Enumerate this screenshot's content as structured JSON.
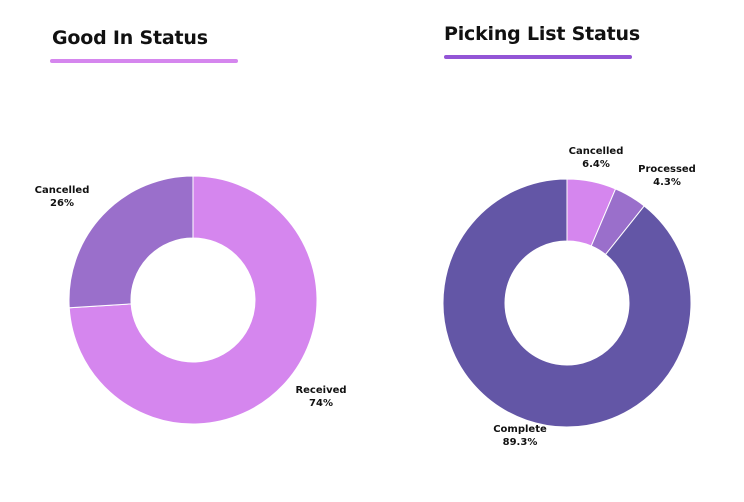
{
  "chart_data": [
    {
      "type": "pie",
      "title": "Good In Status",
      "underline_color": "#D586EE",
      "slices": [
        {
          "name": "Received",
          "value": 74,
          "value_label": "74%",
          "color": "#D586EE"
        },
        {
          "name": "Cancelled",
          "value": 26,
          "value_label": "26%",
          "color": "#9A6FCB"
        }
      ]
    },
    {
      "type": "pie",
      "title": "Picking List Status",
      "underline_color": "#9355D6",
      "slices": [
        {
          "name": "Cancelled",
          "value": 6.4,
          "value_label": "6.4%",
          "color": "#D586EE"
        },
        {
          "name": "Processed",
          "value": 4.3,
          "value_label": "4.3%",
          "color": "#9A6FCB"
        },
        {
          "name": "Complete",
          "value": 89.3,
          "value_label": "89.3%",
          "color": "#6356A6"
        }
      ]
    }
  ]
}
